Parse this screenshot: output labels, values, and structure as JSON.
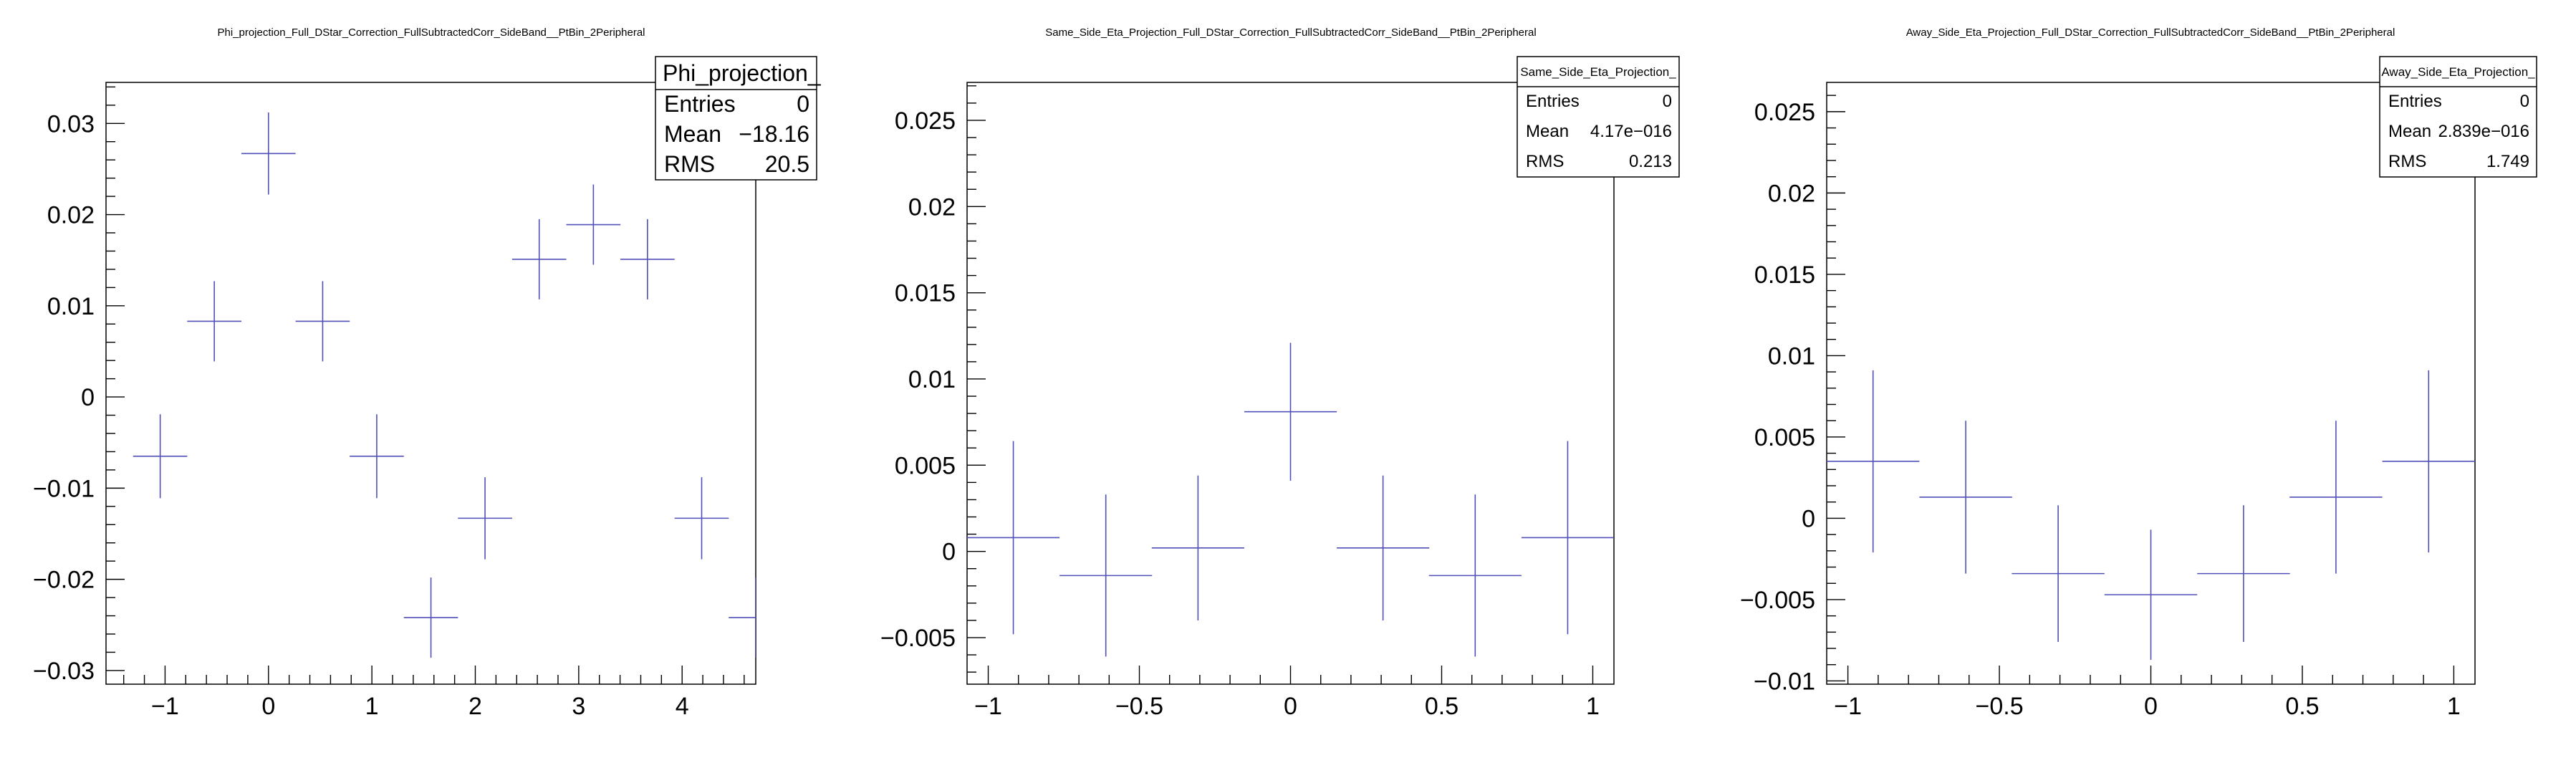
{
  "chart_data": [
    {
      "type": "scatter",
      "title": "Phi_projection_Full_DStar_Correction_FullSubtractedCorr_SideBand__PtBin_2Peripheral",
      "xlim": [
        -1.571,
        4.712
      ],
      "ylim": [
        -0.0315,
        0.0345
      ],
      "xticks": [
        -1,
        0,
        1,
        2,
        3,
        4
      ],
      "yticks": [
        -0.03,
        -0.02,
        -0.01,
        0,
        0.01,
        0.02,
        0.03
      ],
      "xtick_labels": [
        "−1",
        "0",
        "1",
        "2",
        "3",
        "4"
      ],
      "ytick_labels": [
        "−0.03",
        "−0.02",
        "−0.01",
        "0",
        "0.01",
        "0.02",
        "0.03"
      ],
      "grid": false,
      "color": "#5050b8",
      "points": [
        {
          "x": -1.047,
          "y": -0.0065,
          "xerr": 0.262,
          "yerr": 0.0046
        },
        {
          "x": -0.524,
          "y": 0.0083,
          "xerr": 0.262,
          "yerr": 0.0044
        },
        {
          "x": 0.0,
          "y": 0.0267,
          "xerr": 0.262,
          "yerr": 0.0045
        },
        {
          "x": 0.524,
          "y": 0.0083,
          "xerr": 0.262,
          "yerr": 0.0044
        },
        {
          "x": 1.047,
          "y": -0.0065,
          "xerr": 0.262,
          "yerr": 0.0046
        },
        {
          "x": 1.571,
          "y": -0.0242,
          "xerr": 0.262,
          "yerr": 0.0044
        },
        {
          "x": 2.094,
          "y": -0.0133,
          "xerr": 0.262,
          "yerr": 0.0045
        },
        {
          "x": 2.618,
          "y": 0.0151,
          "xerr": 0.262,
          "yerr": 0.0044
        },
        {
          "x": 3.142,
          "y": 0.0189,
          "xerr": 0.262,
          "yerr": 0.0044
        },
        {
          "x": 3.665,
          "y": 0.0151,
          "xerr": 0.262,
          "yerr": 0.0044
        },
        {
          "x": 4.189,
          "y": -0.0133,
          "xerr": 0.262,
          "yerr": 0.0045
        },
        {
          "x": 4.712,
          "y": -0.0242,
          "xerr": 0.262,
          "yerr": 0.0044
        }
      ],
      "stats": {
        "title": "Phi_projection_",
        "rows": [
          {
            "label": "Entries",
            "value": "0"
          },
          {
            "label": "Mean",
            "value": "−18.16"
          },
          {
            "label": "RMS",
            "value": "20.5"
          }
        ]
      }
    },
    {
      "type": "scatter",
      "title": "Same_Side_Eta_Projection_Full_DStar_Correction_FullSubtractedCorr_SideBand__PtBin_2Peripheral",
      "xlim": [
        -1.07,
        1.07
      ],
      "ylim": [
        -0.0077,
        0.0272
      ],
      "xticks": [
        -1,
        -0.5,
        0,
        0.5,
        1
      ],
      "yticks": [
        -0.005,
        0,
        0.005,
        0.01,
        0.015,
        0.02,
        0.025
      ],
      "xtick_labels": [
        "−1",
        "−0.5",
        "0",
        "0.5",
        "1"
      ],
      "ytick_labels": [
        "−0.005",
        "0",
        "0.005",
        "0.01",
        "0.015",
        "0.02",
        "0.025"
      ],
      "grid": false,
      "color": "#5050b8",
      "points": [
        {
          "x": -0.917,
          "y": 0.0008,
          "xerr": 0.153,
          "yerr": 0.0056
        },
        {
          "x": -0.611,
          "y": -0.0014,
          "xerr": 0.153,
          "yerr": 0.0047
        },
        {
          "x": -0.306,
          "y": 0.0002,
          "xerr": 0.153,
          "yerr": 0.0042
        },
        {
          "x": 0.0,
          "y": 0.0081,
          "xerr": 0.153,
          "yerr": 0.004
        },
        {
          "x": 0.306,
          "y": 0.0002,
          "xerr": 0.153,
          "yerr": 0.0042
        },
        {
          "x": 0.611,
          "y": -0.0014,
          "xerr": 0.153,
          "yerr": 0.0047
        },
        {
          "x": 0.917,
          "y": 0.0008,
          "xerr": 0.153,
          "yerr": 0.0056
        }
      ],
      "stats": {
        "title": "Same_Side_Eta_Projection_",
        "rows": [
          {
            "label": "Entries",
            "value": "0"
          },
          {
            "label": "Mean",
            "value": "4.17e−016"
          },
          {
            "label": "RMS",
            "value": "0.213"
          }
        ]
      }
    },
    {
      "type": "scatter",
      "title": "Away_Side_Eta_Projection_Full_DStar_Correction_FullSubtractedCorr_SideBand__PtBin_2Peripheral",
      "xlim": [
        -1.07,
        1.07
      ],
      "ylim": [
        -0.0102,
        0.0268
      ],
      "xticks": [
        -1,
        -0.5,
        0,
        0.5,
        1
      ],
      "yticks": [
        -0.01,
        -0.005,
        0,
        0.005,
        0.01,
        0.015,
        0.02,
        0.025
      ],
      "xtick_labels": [
        "−1",
        "−0.5",
        "0",
        "0.5",
        "1"
      ],
      "ytick_labels": [
        "−0.01",
        "−0.005",
        "0",
        "0.005",
        "0.01",
        "0.015",
        "0.02",
        "0.025"
      ],
      "grid": false,
      "color": "#5050b8",
      "points": [
        {
          "x": -0.917,
          "y": 0.0035,
          "xerr": 0.153,
          "yerr": 0.0056
        },
        {
          "x": -0.611,
          "y": 0.0013,
          "xerr": 0.153,
          "yerr": 0.0047
        },
        {
          "x": -0.306,
          "y": -0.0034,
          "xerr": 0.153,
          "yerr": 0.0042
        },
        {
          "x": 0.0,
          "y": -0.0047,
          "xerr": 0.153,
          "yerr": 0.004
        },
        {
          "x": 0.306,
          "y": -0.0034,
          "xerr": 0.153,
          "yerr": 0.0042
        },
        {
          "x": 0.611,
          "y": 0.0013,
          "xerr": 0.153,
          "yerr": 0.0047
        },
        {
          "x": 0.917,
          "y": 0.0035,
          "xerr": 0.153,
          "yerr": 0.0056
        }
      ],
      "stats": {
        "title": "Away_Side_Eta_Projection_",
        "rows": [
          {
            "label": "Entries",
            "value": "0"
          },
          {
            "label": "Mean",
            "value": "2.839e−016"
          },
          {
            "label": "RMS",
            "value": "1.749"
          }
        ]
      }
    }
  ]
}
